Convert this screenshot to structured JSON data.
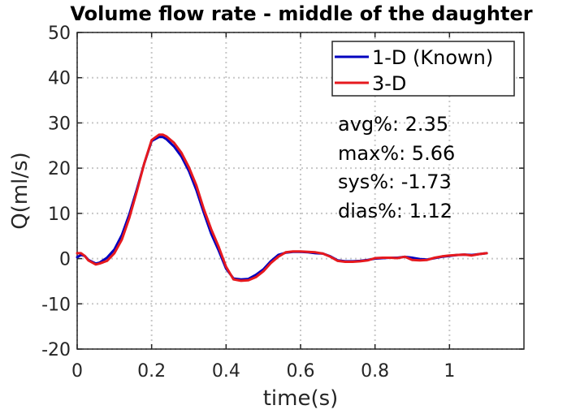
{
  "chart_data": {
    "type": "line",
    "title": "Volume flow rate - middle of the daughter",
    "xlabel": "time(s)",
    "ylabel": "Q(ml/s)",
    "xlim": [
      0,
      1.2
    ],
    "ylim": [
      -20,
      50
    ],
    "xticks": [
      0,
      0.2,
      0.4,
      0.6,
      0.8,
      1
    ],
    "xtick_labels": [
      "0",
      "0.2",
      "0.4",
      "0.6",
      "0.8",
      "1"
    ],
    "yticks": [
      -20,
      -10,
      0,
      10,
      20,
      30,
      40,
      50
    ],
    "ytick_labels": [
      "-20",
      "-10",
      "0",
      "10",
      "20",
      "30",
      "40",
      "50"
    ],
    "grid": true,
    "legend_position": "top-right",
    "series": [
      {
        "name": "1-D (Known)",
        "color": "#0000bf",
        "x": [
          0.0,
          0.01,
          0.02,
          0.03,
          0.05,
          0.06,
          0.08,
          0.1,
          0.12,
          0.14,
          0.16,
          0.18,
          0.2,
          0.22,
          0.23,
          0.24,
          0.26,
          0.28,
          0.3,
          0.32,
          0.34,
          0.36,
          0.38,
          0.4,
          0.42,
          0.44,
          0.46,
          0.48,
          0.5,
          0.52,
          0.54,
          0.56,
          0.58,
          0.6,
          0.62,
          0.64,
          0.66,
          0.68,
          0.7,
          0.72,
          0.74,
          0.76,
          0.78,
          0.8,
          0.82,
          0.84,
          0.86,
          0.88,
          0.9,
          0.92,
          0.94,
          0.96,
          0.98,
          1.0,
          1.02,
          1.04,
          1.06,
          1.08,
          1.1
        ],
        "y": [
          0.3,
          0.8,
          0.6,
          -0.3,
          -1.1,
          -0.9,
          0.2,
          2.0,
          5.2,
          9.8,
          15.2,
          21.0,
          26.0,
          26.9,
          26.9,
          26.4,
          24.8,
          22.6,
          19.4,
          15.2,
          10.2,
          5.5,
          1.8,
          -2.2,
          -4.4,
          -4.6,
          -4.5,
          -3.6,
          -2.4,
          -0.6,
          0.8,
          1.3,
          1.5,
          1.5,
          1.4,
          1.2,
          1.1,
          0.5,
          -0.4,
          -0.6,
          -0.6,
          -0.5,
          -0.3,
          0.0,
          0.1,
          0.2,
          0.2,
          0.4,
          0.2,
          -0.1,
          -0.2,
          0.1,
          0.4,
          0.6,
          0.8,
          0.9,
          0.8,
          1.0,
          1.2
        ]
      },
      {
        "name": "3-D",
        "color": "#e6191e",
        "x": [
          0.0,
          0.01,
          0.02,
          0.03,
          0.05,
          0.06,
          0.08,
          0.1,
          0.12,
          0.14,
          0.16,
          0.18,
          0.2,
          0.22,
          0.23,
          0.24,
          0.26,
          0.28,
          0.3,
          0.32,
          0.34,
          0.36,
          0.38,
          0.4,
          0.42,
          0.44,
          0.46,
          0.48,
          0.5,
          0.52,
          0.54,
          0.56,
          0.58,
          0.6,
          0.62,
          0.64,
          0.66,
          0.68,
          0.7,
          0.72,
          0.74,
          0.76,
          0.78,
          0.8,
          0.82,
          0.84,
          0.86,
          0.88,
          0.9,
          0.92,
          0.94,
          0.96,
          0.98,
          1.0,
          1.02,
          1.04,
          1.06,
          1.08,
          1.1
        ],
        "y": [
          1.2,
          1.2,
          0.6,
          -0.4,
          -1.3,
          -1.1,
          -0.5,
          1.2,
          4.2,
          9.0,
          14.8,
          21.0,
          26.2,
          27.4,
          27.4,
          27.0,
          25.6,
          23.4,
          20.2,
          16.2,
          11.0,
          6.5,
          2.6,
          -1.8,
          -4.6,
          -4.9,
          -4.8,
          -4.1,
          -2.8,
          -1.0,
          0.4,
          1.4,
          1.6,
          1.6,
          1.5,
          1.4,
          1.1,
          0.4,
          -0.5,
          -0.7,
          -0.7,
          -0.6,
          -0.4,
          0.1,
          0.2,
          0.2,
          0.1,
          0.4,
          -0.3,
          -0.4,
          -0.3,
          0.2,
          0.5,
          0.7,
          0.8,
          0.9,
          0.7,
          1.0,
          1.2
        ]
      }
    ],
    "annotations": [
      "avg%: 2.35",
      "max%: 5.66",
      "sys%: -1.73",
      "dias%: 1.12"
    ]
  }
}
